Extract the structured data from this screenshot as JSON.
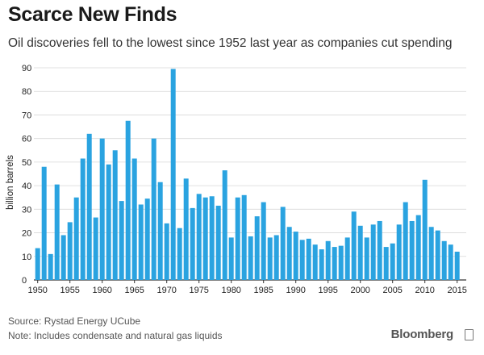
{
  "header": {
    "title": "Scarce New Finds",
    "subtitle": "Oil discoveries fell to the lowest since 1952 last year as companies cut spending"
  },
  "footer": {
    "source": "Source: Rystad Energy UCube",
    "note": "Note: Includes condensate and natural gas liquids",
    "brand": "Bloomberg"
  },
  "colors": {
    "bar": "#2aa3e0",
    "grid": "#d8d8d8",
    "axis": "#333333"
  },
  "chart_data": {
    "type": "bar",
    "title": "Scarce New Finds",
    "subtitle": "Oil discoveries fell to the lowest since 1952 last year as companies cut spending",
    "xlabel": "",
    "ylabel": "billion barrels",
    "ylim": [
      0,
      90
    ],
    "yticks": [
      0,
      10,
      20,
      30,
      40,
      50,
      60,
      70,
      80,
      90
    ],
    "xticks": [
      1950,
      1955,
      1960,
      1965,
      1970,
      1975,
      1980,
      1985,
      1990,
      1995,
      2000,
      2005,
      2010,
      2015
    ],
    "grid": true,
    "categories": [
      1950,
      1951,
      1952,
      1953,
      1954,
      1955,
      1956,
      1957,
      1958,
      1959,
      1960,
      1961,
      1962,
      1963,
      1964,
      1965,
      1966,
      1967,
      1968,
      1969,
      1970,
      1971,
      1972,
      1973,
      1974,
      1975,
      1976,
      1977,
      1978,
      1979,
      1980,
      1981,
      1982,
      1983,
      1984,
      1985,
      1986,
      1987,
      1988,
      1989,
      1990,
      1991,
      1992,
      1993,
      1994,
      1995,
      1996,
      1997,
      1998,
      1999,
      2000,
      2001,
      2002,
      2003,
      2004,
      2005,
      2006,
      2007,
      2008,
      2009,
      2010,
      2011,
      2012,
      2013,
      2014,
      2015
    ],
    "values": [
      13.5,
      48,
      11,
      40.5,
      19,
      24.5,
      35,
      51.5,
      62,
      26.5,
      60,
      49,
      55,
      33.5,
      67.5,
      51.5,
      32,
      34.5,
      60,
      41.5,
      24,
      89.5,
      22,
      43,
      30.5,
      36.5,
      35,
      35.5,
      31.5,
      46.5,
      18,
      35,
      36,
      18.5,
      27,
      33,
      18,
      19,
      31,
      22.5,
      20.5,
      17,
      17.5,
      15,
      13,
      16.5,
      14,
      14.5,
      18,
      29,
      23,
      18,
      23.5,
      25,
      14,
      15.5,
      23.5,
      33,
      25,
      27.5,
      42.5,
      22.5,
      21,
      16.5,
      15,
      12
    ]
  }
}
